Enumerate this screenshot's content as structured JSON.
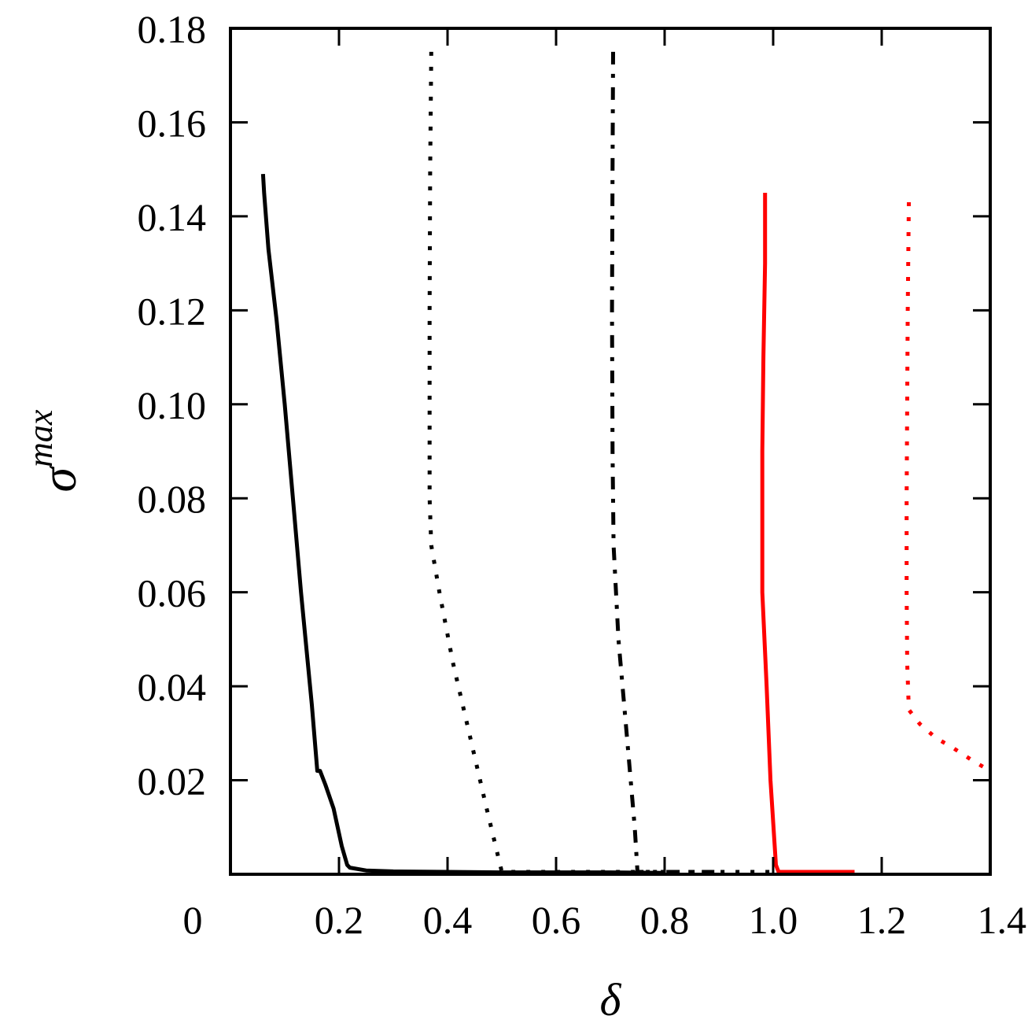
{
  "chart_data": {
    "type": "line",
    "title": "",
    "xlabel": "δ",
    "ylabel": "σ",
    "ylabel_superscript": "max",
    "xlim": [
      0,
      1.4
    ],
    "ylim": [
      0,
      0.18
    ],
    "grid": false,
    "x_ticks": [
      {
        "value": 0,
        "label": "0"
      },
      {
        "value": 0.2,
        "label": "0.2"
      },
      {
        "value": 0.4,
        "label": "0.4"
      },
      {
        "value": 0.6,
        "label": "0.6"
      },
      {
        "value": 0.8,
        "label": "0.8"
      },
      {
        "value": 1.0,
        "label": "1.0"
      },
      {
        "value": 1.2,
        "label": "1.2"
      },
      {
        "value": 1.4,
        "label": "1.4"
      }
    ],
    "y_ticks": [
      {
        "value": 0.02,
        "label": "0.02"
      },
      {
        "value": 0.04,
        "label": "0.04"
      },
      {
        "value": 0.06,
        "label": "0.06"
      },
      {
        "value": 0.08,
        "label": "0.08"
      },
      {
        "value": 0.1,
        "label": "0.10"
      },
      {
        "value": 0.12,
        "label": "0.12"
      },
      {
        "value": 0.14,
        "label": "0.14"
      },
      {
        "value": 0.16,
        "label": "0.16"
      },
      {
        "value": 0.18,
        "label": "0.18"
      }
    ],
    "series": [
      {
        "color": "#000000",
        "style": "solid",
        "x": [
          0.06,
          0.062,
          0.07,
          0.085,
          0.1,
          0.115,
          0.13,
          0.15,
          0.16,
          0.165,
          0.175,
          0.19,
          0.205,
          0.215,
          0.22,
          0.25,
          0.3,
          0.4,
          0.5,
          0.6,
          0.7,
          0.8
        ],
        "y": [
          0.149,
          0.145,
          0.133,
          0.118,
          0.1,
          0.08,
          0.06,
          0.036,
          0.022,
          0.022,
          0.019,
          0.014,
          0.006,
          0.002,
          0.0014,
          0.0008,
          0.0006,
          0.0005,
          0.0004,
          0.0004,
          0.0004,
          0.0003
        ]
      },
      {
        "color": "#000000",
        "style": "dotted",
        "x": [
          0.37,
          0.368,
          0.367,
          0.367,
          0.37,
          0.385,
          0.41,
          0.44,
          0.47,
          0.5,
          0.6,
          0.7,
          0.8,
          0.9,
          1.0
        ],
        "y": [
          0.175,
          0.15,
          0.12,
          0.08,
          0.07,
          0.06,
          0.045,
          0.03,
          0.015,
          0.0005,
          0.0005,
          0.0005,
          0.0005,
          0.0005,
          0.0005
        ]
      },
      {
        "color": "#000000",
        "style": "dashdot",
        "x": [
          0.705,
          0.704,
          0.703,
          0.704,
          0.706,
          0.715,
          0.73,
          0.745,
          0.75,
          0.8,
          0.9
        ],
        "y": [
          0.175,
          0.15,
          0.12,
          0.09,
          0.07,
          0.05,
          0.03,
          0.01,
          0.0005,
          0.0005,
          0.0005
        ]
      },
      {
        "color": "#ff0000",
        "style": "solid",
        "x": [
          0.985,
          0.985,
          0.982,
          0.98,
          0.98,
          0.98,
          0.98,
          0.988,
          0.995,
          1.005,
          1.01,
          1.05,
          1.1,
          1.15
        ],
        "y": [
          0.145,
          0.13,
          0.11,
          0.09,
          0.075,
          0.068,
          0.06,
          0.04,
          0.02,
          0.002,
          0.0005,
          0.0005,
          0.0005,
          0.0005
        ]
      },
      {
        "color": "#ff0000",
        "style": "dotted",
        "x": [
          1.25,
          1.248,
          1.247,
          1.246,
          1.246,
          1.247,
          1.25,
          1.27,
          1.3,
          1.33,
          1.37,
          1.4
        ],
        "y": [
          0.143,
          0.12,
          0.1,
          0.08,
          0.06,
          0.045,
          0.035,
          0.032,
          0.029,
          0.027,
          0.024,
          0.022
        ]
      }
    ]
  }
}
